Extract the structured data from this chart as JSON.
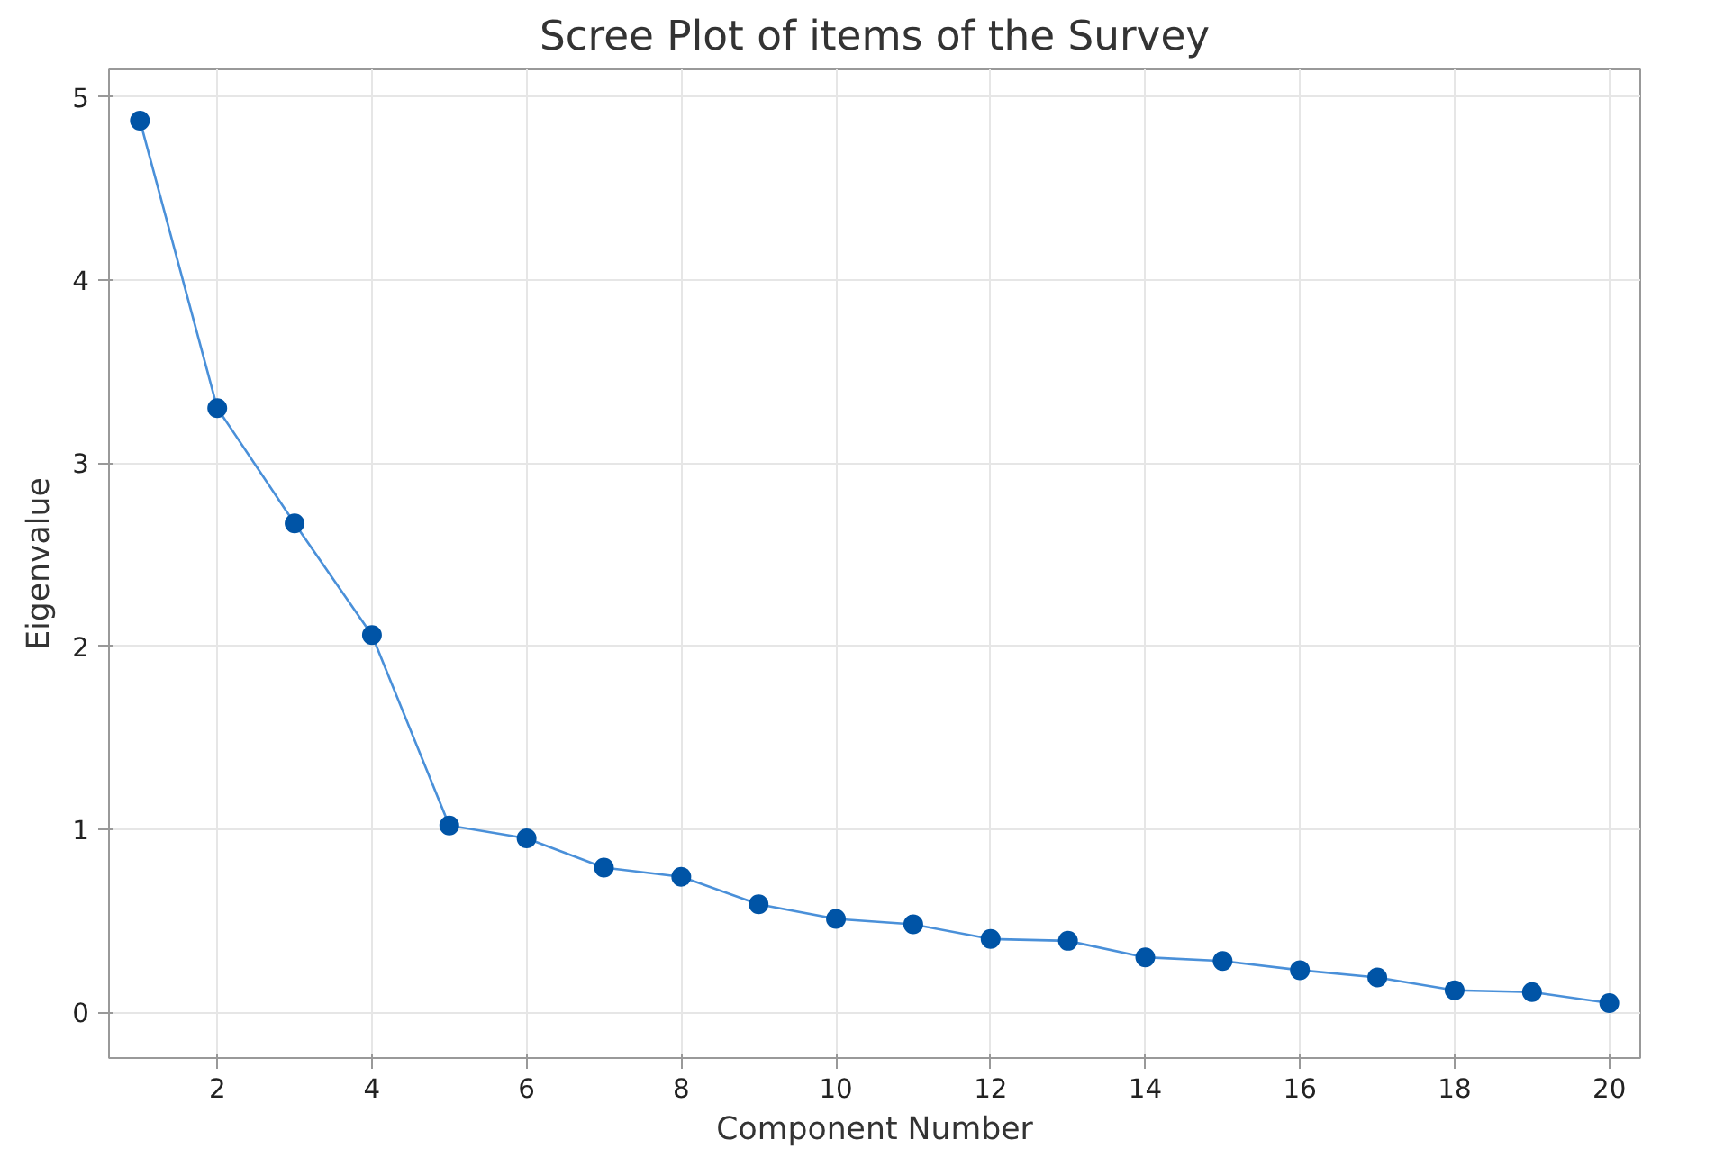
{
  "chart_data": {
    "type": "line",
    "title": "Scree Plot of items of the Survey",
    "xlabel": "Component Number",
    "ylabel": "Eigenvalue",
    "x": [
      1,
      2,
      3,
      4,
      5,
      6,
      7,
      8,
      9,
      10,
      11,
      12,
      13,
      14,
      15,
      16,
      17,
      18,
      19,
      20
    ],
    "series": [
      {
        "color": "#0054a6",
        "values": [
          4.87,
          3.3,
          2.67,
          2.06,
          1.02,
          0.95,
          0.79,
          0.74,
          0.59,
          0.51,
          0.48,
          0.4,
          0.39,
          0.3,
          0.28,
          0.23,
          0.19,
          0.12,
          0.11,
          0.05
        ]
      }
    ],
    "xlim": [
      0.6,
      20.4
    ],
    "xticks": [
      2,
      4,
      6,
      8,
      10,
      12,
      14,
      16,
      18,
      20
    ],
    "ylim": [
      -0.25,
      5.15
    ],
    "yticks": [
      0,
      1,
      2,
      3,
      4,
      5
    ],
    "grid": true,
    "marker": "circle",
    "line_style": "solid"
  }
}
